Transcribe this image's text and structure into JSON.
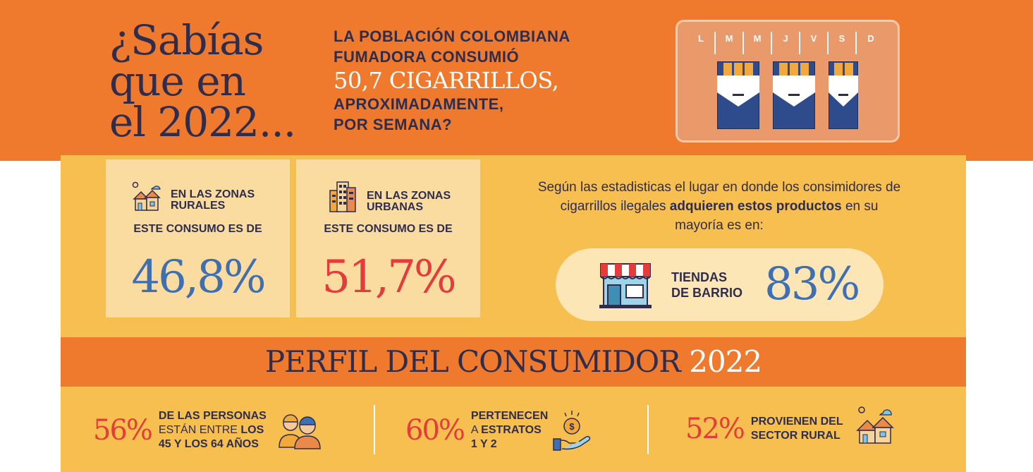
{
  "headline": {
    "line1": "¿Sabías",
    "line2": "que en",
    "line3": "el 2022..."
  },
  "question": {
    "line1": "LA POBLACIÓN COLOMBIANA",
    "line2": "FUMADORA CONSUMIÓ",
    "highlight": "50,7 CIGARRILLOS,",
    "line3": "APROXIMADAMENTE,",
    "line4": "POR SEMANA?"
  },
  "week": {
    "days": [
      "L",
      "M",
      "M",
      "J",
      "V",
      "S",
      "D"
    ],
    "packs": 2.5
  },
  "rural": {
    "title_line1": "EN LAS ZONAS",
    "title_line2": "RURALES",
    "subtitle": "ESTE CONSUMO ES DE",
    "value": "46,8%",
    "color": "#3e6fb3"
  },
  "urban": {
    "title_line1": "EN LAS ZONAS",
    "title_line2": "URBANAS",
    "subtitle": "ESTE CONSUMO ES DE",
    "value": "51,7%",
    "color": "#e63b3b"
  },
  "stats_text": {
    "part1": "Según las estadisticas el lugar en donde los consimidores de cigarrillos ilegales ",
    "bold": "adquieren estos productos",
    "part2": " en su mayoría es en:"
  },
  "store": {
    "label_line1": "TIENDAS",
    "label_line2": "DE BARRIO",
    "value": "83%"
  },
  "profile": {
    "title": "PERFIL DEL CONSUMIDOR",
    "year": "2022",
    "items": [
      {
        "value": "56%",
        "line1": "DE LAS PERSONAS",
        "line2_light": "ESTÁN ENTRE ",
        "line2_bold": "LOS",
        "line3": "45 Y LOS 64 AÑOS"
      },
      {
        "value": "60%",
        "line1": "PERTENECEN",
        "line2_light": "A ",
        "line2_bold": "ESTRATOS",
        "line3": "1 Y 2"
      },
      {
        "value": "52%",
        "line1": "PROVIENEN DEL",
        "line2_bold": "SECTOR RURAL"
      }
    ]
  },
  "colors": {
    "orange": "#ef7a2e",
    "yellow": "#f6bf4f",
    "navy": "#2f2d4e",
    "blue": "#3e6fb3",
    "red": "#e63b3b"
  },
  "icons": [
    "cigarette-pack-icon",
    "house-icon",
    "buildings-icon",
    "store-icon",
    "people-icon",
    "money-hand-icon"
  ]
}
